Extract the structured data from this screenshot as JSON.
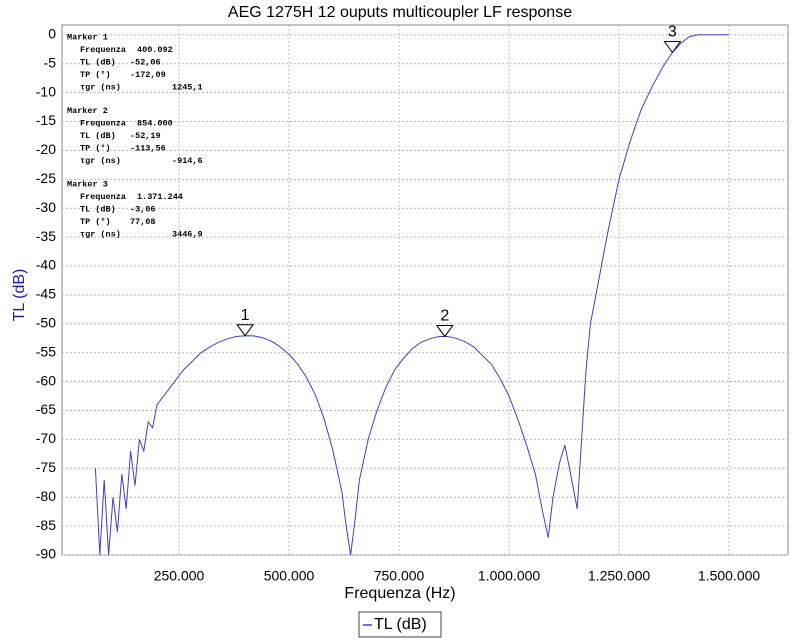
{
  "chart_data": {
    "type": "line",
    "title": "AEG 1275H 12 ouputs multicoupler LF response",
    "x_label": "Frequenza (Hz)",
    "y_label": "TL (dB)",
    "x": [
      60000,
      70000,
      80000,
      90000,
      100000,
      110000,
      120000,
      130000,
      140000,
      150000,
      160000,
      170000,
      180000,
      190000,
      200000,
      220000,
      240000,
      260000,
      280000,
      300000,
      320000,
      340000,
      360000,
      380000,
      400000,
      420000,
      440000,
      460000,
      480000,
      500000,
      520000,
      540000,
      560000,
      580000,
      600000,
      620000,
      630000,
      640000,
      650000,
      660000,
      680000,
      700000,
      720000,
      740000,
      760000,
      780000,
      800000,
      820000,
      840000,
      860000,
      880000,
      900000,
      920000,
      940000,
      960000,
      980000,
      1000000,
      1020000,
      1040000,
      1060000,
      1075000,
      1089000,
      1100000,
      1115000,
      1127000,
      1140000,
      1155000,
      1165000,
      1175000,
      1185000,
      1200000,
      1225000,
      1250000,
      1275000,
      1300000,
      1325000,
      1350000,
      1371000,
      1390000,
      1410000,
      1430000,
      1500000
    ],
    "series": [
      {
        "name": "TL (dB)",
        "color": "#4040c0",
        "values": [
          -75,
          -90,
          -77,
          -90,
          -80,
          -86,
          -76,
          -82,
          -72,
          -78,
          -70,
          -72,
          -67,
          -68,
          -64,
          -62,
          -60,
          -58,
          -56.5,
          -55,
          -54,
          -53.2,
          -52.6,
          -52.2,
          -52.06,
          -52.1,
          -52.4,
          -53,
          -54,
          -55.3,
          -57,
          -59.3,
          -62.3,
          -66.5,
          -72,
          -79,
          -85,
          -90,
          -84,
          -77,
          -70,
          -65,
          -61,
          -58,
          -56,
          -54.3,
          -53.2,
          -52.6,
          -52.2,
          -52.2,
          -52.5,
          -53.1,
          -54,
          -55.5,
          -57,
          -59.5,
          -62.5,
          -66.5,
          -71,
          -76,
          -82,
          -87,
          -80,
          -74,
          -71,
          -76,
          -82,
          -70,
          -58,
          -50,
          -44,
          -34,
          -25,
          -18.5,
          -13,
          -9,
          -5.5,
          -3.06,
          -1.5,
          -0.3,
          0,
          0
        ]
      }
    ],
    "xlim": [
      -16000,
      1634000
    ],
    "ylim": [
      -90,
      1.7
    ],
    "xticks": [
      {
        "value": 250000,
        "label": "250.000"
      },
      {
        "value": 500000,
        "label": "500.000"
      },
      {
        "value": 750000,
        "label": "750.000"
      },
      {
        "value": 1000000,
        "label": "1.000.000"
      },
      {
        "value": 1250000,
        "label": "1.250.000"
      },
      {
        "value": 1500000,
        "label": "1.500.000"
      }
    ],
    "yticks": [
      0,
      -5,
      -10,
      -15,
      -20,
      -25,
      -30,
      -35,
      -40,
      -45,
      -50,
      -55,
      -60,
      -65,
      -70,
      -75,
      -80,
      -85,
      -90
    ],
    "grid": true,
    "legend": "bottom",
    "markers": [
      {
        "label": "1",
        "x": 400092,
        "y": -52.06
      },
      {
        "label": "2",
        "x": 854000,
        "y": -52.19
      },
      {
        "label": "3",
        "x": 1371244,
        "y": -3.06
      }
    ],
    "readouts": [
      {
        "title": "Marker 1",
        "rows": [
          {
            "name": "Frequenza",
            "value": "400.092"
          },
          {
            "name": "TL (dB)",
            "value": "-52,06"
          },
          {
            "name": "TP (°)",
            "value": "-172,09"
          },
          {
            "name": "τgr (ns)",
            "value": "1245,1"
          }
        ]
      },
      {
        "title": "Marker 2",
        "rows": [
          {
            "name": "Frequenza",
            "value": "854.000"
          },
          {
            "name": "TL (dB)",
            "value": "-52,19"
          },
          {
            "name": "TP (°)",
            "value": "-113,56"
          },
          {
            "name": "τgr (ns)",
            "value": "-914,6"
          }
        ]
      },
      {
        "title": "Marker 3",
        "rows": [
          {
            "name": "Frequenza",
            "value": "1.371.244"
          },
          {
            "name": "TL (dB)",
            "value": "-3,06"
          },
          {
            "name": "TP (°)",
            "value": "77,08"
          },
          {
            "name": "τgr (ns)",
            "value": "3446,9"
          }
        ]
      }
    ]
  }
}
